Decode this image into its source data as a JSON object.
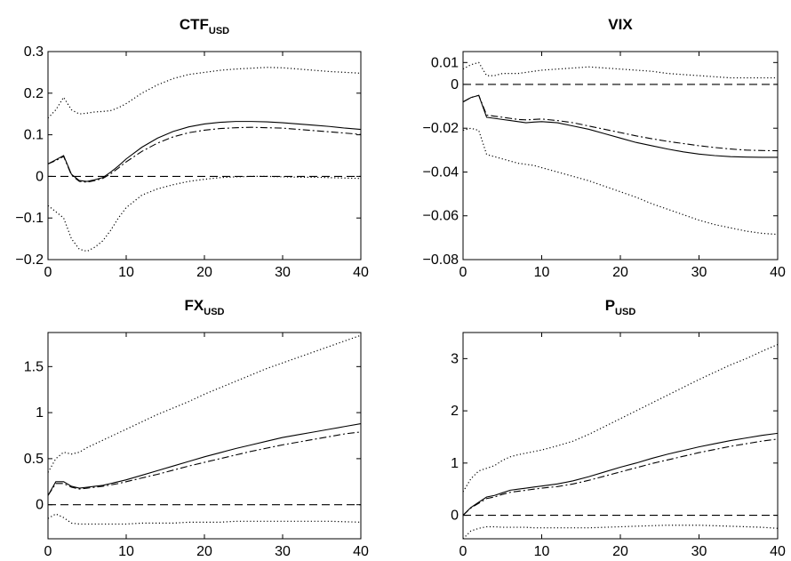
{
  "chart_data": [
    {
      "type": "line",
      "title": "CTF",
      "title_subscript": "USD",
      "xlim": [
        0,
        40
      ],
      "ylim": [
        -0.2,
        0.3
      ],
      "xticks": [
        0,
        10,
        20,
        30,
        40
      ],
      "xtick_labels": [
        "0",
        "10",
        "20",
        "30",
        "40"
      ],
      "yticks": [
        -0.2,
        -0.1,
        0,
        0.1,
        0.2,
        0.3
      ],
      "ytick_labels": [
        "−0.2",
        "−0.1",
        "0",
        "0.1",
        "0.2",
        "0.3"
      ],
      "grid": false,
      "series": [
        {
          "style": "solid",
          "x": [
            0,
            1,
            2,
            3,
            4,
            5,
            6,
            7,
            8,
            9,
            10,
            12,
            14,
            16,
            18,
            20,
            22,
            24,
            26,
            28,
            30,
            32,
            34,
            36,
            38,
            40
          ],
          "values": [
            0.03,
            0.04,
            0.05,
            0.005,
            -0.01,
            -0.012,
            -0.008,
            -0.003,
            0.01,
            0.025,
            0.042,
            0.07,
            0.092,
            0.108,
            0.119,
            0.126,
            0.13,
            0.132,
            0.132,
            0.131,
            0.129,
            0.126,
            0.123,
            0.12,
            0.116,
            0.113
          ]
        },
        {
          "style": "dashdot",
          "x": [
            0,
            1,
            2,
            3,
            4,
            5,
            6,
            7,
            8,
            9,
            10,
            12,
            14,
            16,
            18,
            20,
            22,
            24,
            26,
            28,
            30,
            32,
            34,
            36,
            38,
            40
          ],
          "values": [
            0.03,
            0.038,
            0.048,
            0.003,
            -0.012,
            -0.014,
            -0.01,
            -0.005,
            0.006,
            0.02,
            0.035,
            0.06,
            0.08,
            0.095,
            0.105,
            0.111,
            0.115,
            0.117,
            0.118,
            0.117,
            0.116,
            0.113,
            0.11,
            0.107,
            0.104,
            0.101
          ]
        },
        {
          "style": "dotted",
          "x": [
            0,
            1,
            2,
            3,
            4,
            5,
            6,
            7,
            8,
            9,
            10,
            12,
            14,
            16,
            18,
            20,
            22,
            24,
            26,
            28,
            30,
            32,
            34,
            36,
            38,
            40
          ],
          "values": [
            0.14,
            0.16,
            0.19,
            0.16,
            0.15,
            0.152,
            0.155,
            0.156,
            0.158,
            0.165,
            0.175,
            0.2,
            0.22,
            0.235,
            0.245,
            0.25,
            0.255,
            0.258,
            0.26,
            0.262,
            0.261,
            0.258,
            0.255,
            0.252,
            0.25,
            0.248
          ]
        },
        {
          "style": "dotted",
          "x": [
            0,
            1,
            2,
            3,
            4,
            5,
            6,
            7,
            8,
            9,
            10,
            12,
            14,
            16,
            18,
            20,
            22,
            24,
            26,
            28,
            30,
            32,
            34,
            36,
            38,
            40
          ],
          "values": [
            -0.07,
            -0.085,
            -0.1,
            -0.15,
            -0.175,
            -0.18,
            -0.17,
            -0.155,
            -0.13,
            -0.1,
            -0.075,
            -0.045,
            -0.03,
            -0.02,
            -0.012,
            -0.007,
            -0.003,
            -0.001,
            0.0,
            0.0,
            -0.001,
            -0.002,
            -0.002,
            -0.003,
            -0.004,
            -0.005
          ]
        },
        {
          "style": "dashed",
          "x": [
            0,
            40
          ],
          "values": [
            0,
            0
          ]
        }
      ]
    },
    {
      "type": "line",
      "title": "VIX",
      "title_subscript": "",
      "xlim": [
        0,
        40
      ],
      "ylim": [
        -0.08,
        0.015
      ],
      "xticks": [
        0,
        10,
        20,
        30,
        40
      ],
      "xtick_labels": [
        "0",
        "10",
        "20",
        "30",
        "40"
      ],
      "yticks": [
        -0.08,
        -0.06,
        -0.04,
        -0.02,
        0,
        0.01
      ],
      "ytick_labels": [
        "−0.08",
        "−0.06",
        "−0.04",
        "−0.02",
        "0",
        "0.01"
      ],
      "grid": false,
      "series": [
        {
          "style": "solid",
          "x": [
            0,
            1,
            2,
            3,
            4,
            5,
            6,
            7,
            8,
            9,
            10,
            12,
            14,
            16,
            18,
            20,
            22,
            24,
            26,
            28,
            30,
            32,
            34,
            36,
            38,
            40
          ],
          "values": [
            -0.008,
            -0.006,
            -0.005,
            -0.015,
            -0.0155,
            -0.016,
            -0.0165,
            -0.017,
            -0.0175,
            -0.0172,
            -0.017,
            -0.0175,
            -0.019,
            -0.0205,
            -0.0225,
            -0.0245,
            -0.0265,
            -0.028,
            -0.0295,
            -0.0308,
            -0.0318,
            -0.0325,
            -0.033,
            -0.0332,
            -0.0333,
            -0.0333
          ]
        },
        {
          "style": "dashdot",
          "x": [
            0,
            1,
            2,
            3,
            4,
            5,
            6,
            7,
            8,
            9,
            10,
            12,
            14,
            16,
            18,
            20,
            22,
            24,
            26,
            28,
            30,
            32,
            34,
            36,
            38,
            40
          ],
          "values": [
            -0.008,
            -0.006,
            -0.005,
            -0.014,
            -0.0145,
            -0.015,
            -0.0155,
            -0.016,
            -0.0162,
            -0.016,
            -0.0158,
            -0.0165,
            -0.0175,
            -0.019,
            -0.0205,
            -0.022,
            -0.0235,
            -0.0248,
            -0.026,
            -0.027,
            -0.028,
            -0.0288,
            -0.0295,
            -0.03,
            -0.0302,
            -0.0303
          ]
        },
        {
          "style": "dotted",
          "x": [
            0,
            1,
            2,
            3,
            4,
            5,
            6,
            7,
            8,
            9,
            10,
            12,
            14,
            16,
            18,
            20,
            22,
            24,
            26,
            28,
            30,
            32,
            34,
            36,
            38,
            40
          ],
          "values": [
            0.007,
            0.009,
            0.01,
            0.004,
            0.004,
            0.005,
            0.005,
            0.005,
            0.0055,
            0.006,
            0.0065,
            0.007,
            0.0075,
            0.008,
            0.0075,
            0.007,
            0.0065,
            0.006,
            0.005,
            0.0045,
            0.004,
            0.0035,
            0.003,
            0.003,
            0.003,
            0.003
          ]
        },
        {
          "style": "dotted",
          "x": [
            0,
            1,
            2,
            3,
            4,
            5,
            6,
            7,
            8,
            9,
            10,
            12,
            14,
            16,
            18,
            20,
            22,
            24,
            26,
            28,
            30,
            32,
            34,
            36,
            38,
            40
          ],
          "values": [
            -0.021,
            -0.02,
            -0.021,
            -0.032,
            -0.033,
            -0.034,
            -0.035,
            -0.036,
            -0.0365,
            -0.037,
            -0.038,
            -0.04,
            -0.042,
            -0.044,
            -0.0465,
            -0.049,
            -0.0515,
            -0.0545,
            -0.057,
            -0.0595,
            -0.062,
            -0.064,
            -0.0655,
            -0.067,
            -0.068,
            -0.0685
          ]
        },
        {
          "style": "dashed",
          "x": [
            0,
            40
          ],
          "values": [
            0,
            0
          ]
        }
      ]
    },
    {
      "type": "line",
      "title": "FX",
      "title_subscript": "USD",
      "xlim": [
        0,
        40
      ],
      "ylim": [
        -0.37,
        1.87
      ],
      "xticks": [
        0,
        10,
        20,
        30,
        40
      ],
      "xtick_labels": [
        "0",
        "10",
        "20",
        "30",
        "40"
      ],
      "yticks": [
        0,
        0.5,
        1,
        1.5
      ],
      "ytick_labels": [
        "0",
        "0.5",
        "1",
        "1.5"
      ],
      "grid": false,
      "series": [
        {
          "style": "solid",
          "x": [
            0,
            1,
            2,
            3,
            4,
            5,
            6,
            7,
            8,
            9,
            10,
            12,
            14,
            16,
            18,
            20,
            22,
            24,
            26,
            28,
            30,
            32,
            34,
            36,
            38,
            40
          ],
          "values": [
            0.1,
            0.25,
            0.25,
            0.2,
            0.18,
            0.19,
            0.2,
            0.21,
            0.23,
            0.25,
            0.27,
            0.32,
            0.37,
            0.42,
            0.47,
            0.52,
            0.565,
            0.61,
            0.65,
            0.69,
            0.73,
            0.76,
            0.79,
            0.82,
            0.85,
            0.88
          ]
        },
        {
          "style": "dashdot",
          "x": [
            0,
            1,
            2,
            3,
            4,
            5,
            6,
            7,
            8,
            9,
            10,
            12,
            14,
            16,
            18,
            20,
            22,
            24,
            26,
            28,
            30,
            32,
            34,
            36,
            38,
            40
          ],
          "values": [
            0.1,
            0.23,
            0.23,
            0.19,
            0.17,
            0.18,
            0.19,
            0.2,
            0.215,
            0.23,
            0.25,
            0.29,
            0.33,
            0.375,
            0.42,
            0.46,
            0.5,
            0.54,
            0.58,
            0.615,
            0.65,
            0.68,
            0.71,
            0.74,
            0.77,
            0.79
          ]
        },
        {
          "style": "dotted",
          "x": [
            0,
            1,
            2,
            3,
            4,
            5,
            6,
            7,
            8,
            9,
            10,
            12,
            14,
            16,
            18,
            20,
            22,
            24,
            26,
            28,
            30,
            32,
            34,
            36,
            38,
            40
          ],
          "values": [
            0.35,
            0.5,
            0.57,
            0.55,
            0.57,
            0.62,
            0.66,
            0.7,
            0.74,
            0.78,
            0.82,
            0.9,
            0.98,
            1.05,
            1.12,
            1.2,
            1.27,
            1.34,
            1.41,
            1.48,
            1.54,
            1.6,
            1.66,
            1.72,
            1.78,
            1.84
          ]
        },
        {
          "style": "dotted",
          "x": [
            0,
            1,
            2,
            3,
            4,
            5,
            6,
            7,
            8,
            9,
            10,
            12,
            14,
            16,
            18,
            20,
            22,
            24,
            26,
            28,
            30,
            32,
            34,
            36,
            38,
            40
          ],
          "values": [
            -0.15,
            -0.1,
            -0.14,
            -0.2,
            -0.21,
            -0.21,
            -0.21,
            -0.21,
            -0.21,
            -0.21,
            -0.21,
            -0.2,
            -0.2,
            -0.2,
            -0.19,
            -0.19,
            -0.19,
            -0.18,
            -0.18,
            -0.18,
            -0.18,
            -0.18,
            -0.18,
            -0.18,
            -0.185,
            -0.19
          ]
        },
        {
          "style": "dashed",
          "x": [
            0,
            40
          ],
          "values": [
            0,
            0
          ]
        }
      ]
    },
    {
      "type": "line",
      "title": "P",
      "title_subscript": "USD",
      "xlim": [
        0,
        40
      ],
      "ylim": [
        -0.45,
        3.5
      ],
      "xticks": [
        0,
        10,
        20,
        30,
        40
      ],
      "xtick_labels": [
        "0",
        "10",
        "20",
        "30",
        "40"
      ],
      "yticks": [
        0,
        1,
        2,
        3
      ],
      "ytick_labels": [
        "0",
        "1",
        "2",
        "3"
      ],
      "grid": false,
      "series": [
        {
          "style": "solid",
          "x": [
            0,
            1,
            2,
            3,
            4,
            5,
            6,
            7,
            8,
            9,
            10,
            12,
            14,
            16,
            18,
            20,
            22,
            24,
            26,
            28,
            30,
            32,
            34,
            36,
            38,
            40
          ],
          "values": [
            0.0,
            0.15,
            0.25,
            0.35,
            0.38,
            0.43,
            0.48,
            0.5,
            0.52,
            0.54,
            0.56,
            0.6,
            0.66,
            0.74,
            0.83,
            0.92,
            1.0,
            1.09,
            1.17,
            1.24,
            1.31,
            1.37,
            1.43,
            1.48,
            1.53,
            1.57
          ]
        },
        {
          "style": "dashdot",
          "x": [
            0,
            1,
            2,
            3,
            4,
            5,
            6,
            7,
            8,
            9,
            10,
            12,
            14,
            16,
            18,
            20,
            22,
            24,
            26,
            28,
            30,
            32,
            34,
            36,
            38,
            40
          ],
          "values": [
            0.0,
            0.14,
            0.23,
            0.32,
            0.35,
            0.4,
            0.44,
            0.46,
            0.48,
            0.5,
            0.52,
            0.55,
            0.6,
            0.67,
            0.75,
            0.83,
            0.91,
            0.99,
            1.06,
            1.13,
            1.2,
            1.26,
            1.32,
            1.37,
            1.42,
            1.46
          ]
        },
        {
          "style": "dotted",
          "x": [
            0,
            1,
            2,
            3,
            4,
            5,
            6,
            7,
            8,
            9,
            10,
            12,
            14,
            16,
            18,
            20,
            22,
            24,
            26,
            28,
            30,
            32,
            34,
            36,
            38,
            40
          ],
          "values": [
            0.45,
            0.7,
            0.85,
            0.9,
            0.95,
            1.05,
            1.12,
            1.16,
            1.19,
            1.22,
            1.25,
            1.33,
            1.42,
            1.55,
            1.7,
            1.85,
            2.0,
            2.15,
            2.3,
            2.45,
            2.6,
            2.74,
            2.88,
            3.0,
            3.14,
            3.27
          ]
        },
        {
          "style": "dotted",
          "x": [
            0,
            1,
            2,
            3,
            4,
            5,
            6,
            7,
            8,
            9,
            10,
            12,
            14,
            16,
            18,
            20,
            22,
            24,
            26,
            28,
            30,
            32,
            34,
            36,
            38,
            40
          ],
          "values": [
            -0.45,
            -0.3,
            -0.25,
            -0.22,
            -0.22,
            -0.23,
            -0.23,
            -0.23,
            -0.23,
            -0.24,
            -0.24,
            -0.24,
            -0.24,
            -0.24,
            -0.23,
            -0.22,
            -0.21,
            -0.2,
            -0.19,
            -0.19,
            -0.19,
            -0.2,
            -0.21,
            -0.22,
            -0.23,
            -0.25
          ]
        },
        {
          "style": "dashed",
          "x": [
            0,
            40
          ],
          "values": [
            0,
            0
          ]
        }
      ]
    }
  ]
}
